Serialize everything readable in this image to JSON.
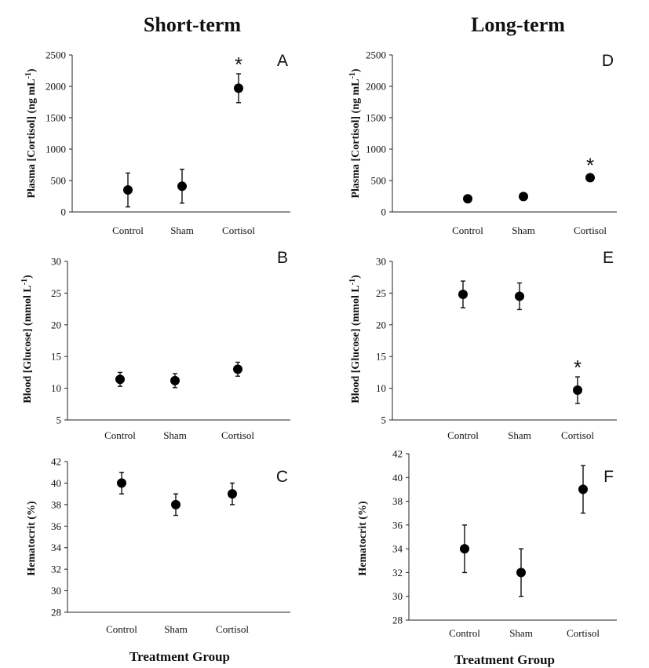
{
  "column_titles": {
    "left": "Short-term",
    "right": "Long-term"
  },
  "x_axis_label": "Treatment Group",
  "chart_data": [
    {
      "type": "scatter",
      "panel": "A",
      "categories": [
        "Control",
        "Sham",
        "Cortisol"
      ],
      "values": [
        350,
        410,
        1970
      ],
      "error": [
        270,
        270,
        230
      ],
      "significant": [
        false,
        false,
        true
      ],
      "ylabel": "Plasma [Cortisol] (ng mL-1)",
      "ylim": [
        0,
        2500
      ],
      "yticks": [
        0,
        500,
        1000,
        1500,
        2000,
        2500
      ]
    },
    {
      "type": "scatter",
      "panel": "B",
      "categories": [
        "Control",
        "Sham",
        "Cortisol"
      ],
      "values": [
        11.4,
        11.2,
        13.0
      ],
      "error": [
        1.1,
        1.1,
        1.1
      ],
      "significant": [
        false,
        false,
        false
      ],
      "ylabel": "Blood [Glucose] (mmol L-1)",
      "ylim": [
        5,
        30
      ],
      "yticks": [
        5,
        10,
        15,
        20,
        25,
        30
      ]
    },
    {
      "type": "scatter",
      "panel": "C",
      "categories": [
        "Control",
        "Sham",
        "Cortisol"
      ],
      "values": [
        40,
        38,
        39
      ],
      "error": [
        1,
        1,
        1
      ],
      "significant": [
        false,
        false,
        false
      ],
      "ylabel": "Hematocrit (%)",
      "ylim": [
        28,
        42
      ],
      "yticks": [
        28,
        30,
        32,
        34,
        36,
        38,
        40,
        42
      ]
    },
    {
      "type": "scatter",
      "panel": "D",
      "categories": [
        "Control",
        "Sham",
        "Cortisol"
      ],
      "values": [
        210,
        245,
        545
      ],
      "error": [
        40,
        40,
        50
      ],
      "significant": [
        false,
        false,
        true
      ],
      "ylabel": "Plasma [Cortisol] (ng mL-1)",
      "ylim": [
        0,
        2500
      ],
      "yticks": [
        0,
        500,
        1000,
        1500,
        2000,
        2500
      ]
    },
    {
      "type": "scatter",
      "panel": "E",
      "categories": [
        "Control",
        "Sham",
        "Cortisol"
      ],
      "values": [
        24.8,
        24.5,
        9.7
      ],
      "error": [
        2.1,
        2.1,
        2.1
      ],
      "significant": [
        false,
        false,
        true
      ],
      "ylabel": "Blood [Glucose] (mmol L-1)",
      "ylim": [
        5,
        30
      ],
      "yticks": [
        5,
        10,
        15,
        20,
        25,
        30
      ]
    },
    {
      "type": "scatter",
      "panel": "F",
      "categories": [
        "Control",
        "Sham",
        "Cortisol"
      ],
      "values": [
        34,
        32,
        39
      ],
      "error": [
        2,
        2,
        2
      ],
      "significant": [
        false,
        false,
        false
      ],
      "ylabel": "Hematocrit (%)",
      "ylim": [
        28,
        42
      ],
      "yticks": [
        28,
        30,
        32,
        34,
        36,
        38,
        40,
        42
      ]
    }
  ]
}
